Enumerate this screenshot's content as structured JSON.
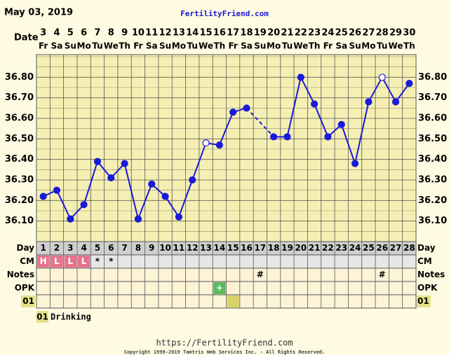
{
  "chart_data": {
    "type": "line",
    "title": "May 03, 2019",
    "site": "FertilityFriend.com",
    "date_label": "Date",
    "dates": [
      3,
      4,
      5,
      6,
      7,
      8,
      9,
      10,
      11,
      12,
      13,
      14,
      15,
      16,
      17,
      18,
      19,
      20,
      21,
      22,
      23,
      24,
      25,
      26,
      27,
      28,
      29,
      30
    ],
    "weekdays": [
      "Fr",
      "Sa",
      "Su",
      "Mo",
      "Tu",
      "We",
      "Th",
      "Fr",
      "Sa",
      "Su",
      "Mo",
      "Tu",
      "We",
      "Th",
      "Fr",
      "Sa",
      "Su",
      "Mo",
      "Tu",
      "We",
      "Th",
      "Fr",
      "Sa",
      "Su",
      "Mo",
      "Tu",
      "We",
      "Th"
    ],
    "day_label": "Day",
    "days": [
      1,
      2,
      3,
      4,
      5,
      6,
      7,
      8,
      9,
      10,
      11,
      12,
      13,
      14,
      15,
      16,
      17,
      18,
      19,
      20,
      21,
      22,
      23,
      24,
      25,
      26,
      27,
      28
    ],
    "values": [
      36.22,
      36.25,
      36.11,
      36.18,
      36.39,
      36.31,
      36.38,
      36.11,
      36.28,
      36.22,
      36.12,
      36.3,
      36.48,
      36.47,
      36.63,
      36.65,
      null,
      36.51,
      36.51,
      36.8,
      36.67,
      36.51,
      36.57,
      36.38,
      36.68,
      36.8,
      36.68,
      36.77
    ],
    "open_markers": [
      12,
      25
    ],
    "color": "#1a1ad8",
    "ylim": [
      36.0,
      36.9
    ],
    "yticks": [
      {
        "value": 36.1,
        "label": "36.10"
      },
      {
        "value": 36.2,
        "label": "36.20"
      },
      {
        "value": 36.3,
        "label": "36.30"
      },
      {
        "value": 36.4,
        "label": "36.40"
      },
      {
        "value": 36.5,
        "label": "36.50"
      },
      {
        "value": 36.6,
        "label": "36.60"
      },
      {
        "value": 36.7,
        "label": "36.70"
      },
      {
        "value": 36.8,
        "label": "36.80"
      }
    ],
    "rows": [
      {
        "label": "CM",
        "background": "#e6e6e6",
        "cells": [
          {
            "text": "H",
            "color": "#e8728c"
          },
          {
            "text": "L",
            "color": "#e8728c"
          },
          {
            "text": "L",
            "color": "#e8728c"
          },
          {
            "text": "L",
            "color": "#e8728c"
          },
          {
            "text": "*"
          },
          {
            "text": "*"
          },
          null,
          null,
          null,
          null,
          null,
          null,
          null,
          null,
          null,
          null,
          null,
          null,
          null,
          null,
          null,
          null,
          null,
          null,
          null,
          null,
          null,
          null
        ]
      },
      {
        "label": "Notes",
        "background": "#fdf3d6",
        "cells": [
          null,
          null,
          null,
          null,
          null,
          null,
          null,
          null,
          null,
          null,
          null,
          null,
          null,
          null,
          null,
          null,
          {
            "text": "#"
          },
          null,
          null,
          null,
          null,
          null,
          null,
          null,
          null,
          {
            "text": "#"
          },
          null,
          null
        ]
      },
      {
        "label": "OPK",
        "background": "#fdf3d6",
        "cells": [
          null,
          null,
          null,
          null,
          null,
          null,
          null,
          null,
          null,
          null,
          null,
          null,
          null,
          {
            "text": "+",
            "color": "#5cb85c"
          },
          null,
          null,
          null,
          null,
          null,
          null,
          null,
          null,
          null,
          null,
          null,
          null,
          null,
          null
        ]
      },
      {
        "label": "01",
        "background": "#fdf3d6",
        "label_color": "#e6e08a",
        "cells": [
          null,
          null,
          null,
          null,
          null,
          null,
          null,
          null,
          null,
          null,
          null,
          null,
          null,
          null,
          {
            "color": "#d8d46a"
          },
          null,
          null,
          null,
          null,
          null,
          null,
          null,
          null,
          null,
          null,
          null,
          null,
          null
        ]
      }
    ],
    "legend": {
      "code": "01",
      "text": "Drinking"
    },
    "footer_url": "https://FertilityFriend.com",
    "copyright": "Copyright 1998-2019 Tamtris Web Services Inc. - All Rights Reserved."
  }
}
